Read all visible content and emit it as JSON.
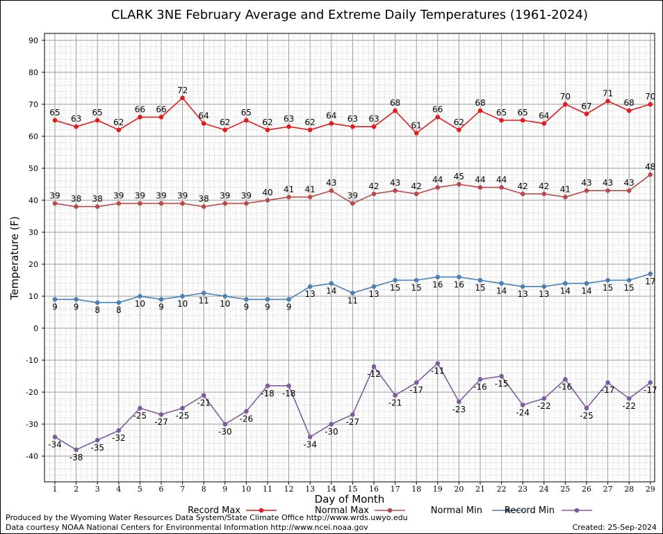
{
  "chart_data": {
    "type": "line",
    "title": "CLARK 3NE February Average and Extreme Daily Temperatures (1961-2024)",
    "xlabel": "Day of Month",
    "ylabel": "Temperature (F)",
    "ylim": [
      -50,
      92
    ],
    "yticks": [
      -40,
      -30,
      -20,
      -10,
      0,
      10,
      20,
      30,
      40,
      50,
      60,
      70,
      80,
      90
    ],
    "x": [
      1,
      2,
      3,
      4,
      5,
      6,
      7,
      8,
      9,
      10,
      11,
      12,
      13,
      14,
      15,
      16,
      17,
      18,
      19,
      20,
      21,
      22,
      23,
      24,
      25,
      26,
      27,
      28,
      29
    ],
    "grid": true,
    "legend_position": "bottom",
    "series": [
      {
        "name": "Record Max",
        "color": "#e41a1c",
        "label_pos": "above",
        "values": [
          65,
          63,
          65,
          62,
          66,
          66,
          72,
          64,
          62,
          65,
          62,
          63,
          62,
          64,
          63,
          63,
          68,
          61,
          66,
          62,
          68,
          65,
          65,
          64,
          70,
          67,
          71,
          68,
          70
        ]
      },
      {
        "name": "Normal Max",
        "color": "#b84a4a",
        "label_pos": "above",
        "values": [
          39,
          38,
          38,
          39,
          39,
          39,
          39,
          38,
          39,
          39,
          40,
          41,
          41,
          43,
          39,
          42,
          43,
          42,
          44,
          45,
          44,
          44,
          42,
          42,
          41,
          43,
          43,
          43,
          48
        ]
      },
      {
        "name": "Normal Min",
        "color": "#4a7fb8",
        "label_pos": "below",
        "values": [
          9,
          9,
          8,
          8,
          10,
          9,
          10,
          11,
          10,
          9,
          9,
          9,
          13,
          14,
          11,
          13,
          15,
          15,
          16,
          16,
          15,
          14,
          13,
          13,
          14,
          14,
          15,
          15,
          17
        ]
      },
      {
        "name": "Record Min",
        "color": "#7e5aa0",
        "label_pos": "below",
        "values": [
          -34,
          -38,
          -35,
          -32,
          -25,
          -27,
          -25,
          -21,
          -30,
          -26,
          -18,
          -18,
          -34,
          -30,
          -27,
          -12,
          -21,
          -17,
          -11,
          -23,
          -16,
          -15,
          -24,
          -22,
          -16,
          -25,
          -17,
          -22,
          -17
        ]
      }
    ]
  },
  "footer": {
    "produced_by": "Produced by the Wyoming Water Resources Data System/State Climate Office http://www.wrds.uwyo.edu",
    "data_courtesy": "Data courtesy NOAA National Centers for Environmental Information http://www.ncei.noaa.gov",
    "created": "Created:  25-Sep-2024"
  }
}
